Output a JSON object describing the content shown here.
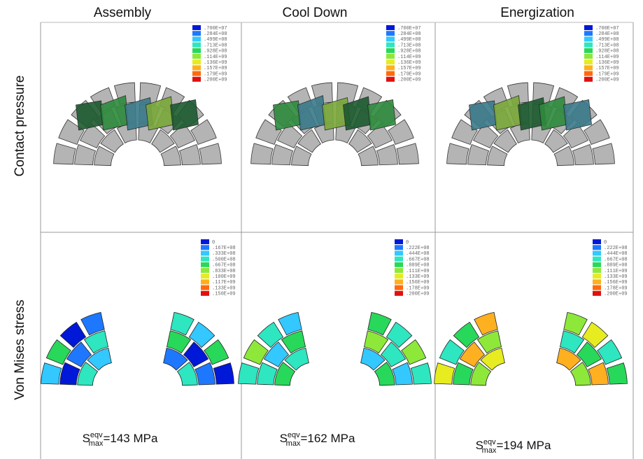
{
  "columns": [
    "Assembly",
    "Cool Down",
    "Energization"
  ],
  "rows": [
    "Contact pressure",
    "Von Mises stress"
  ],
  "panels": [
    [
      {
        "legend": [
          ".700E+07",
          ".284E+08",
          ".499E+08",
          ".713E+08",
          ".928E+08",
          ".114E+09",
          ".136E+09",
          ".157E+09",
          ".179E+09",
          ".200E+09"
        ]
      },
      {
        "legend": [
          ".700E+07",
          ".284E+08",
          ".499E+08",
          ".713E+08",
          ".928E+08",
          ".114E+09",
          ".136E+09",
          ".157E+09",
          ".179E+09",
          ".200E+09"
        ]
      },
      {
        "legend": [
          ".700E+07",
          ".284E+08",
          ".499E+08",
          ".713E+08",
          ".928E+08",
          ".114E+09",
          ".136E+09",
          ".157E+09",
          ".179E+09",
          ".200E+09"
        ]
      }
    ],
    [
      {
        "legend": [
          "0",
          ".167E+08",
          ".333E+08",
          ".500E+08",
          ".667E+08",
          ".833E+08",
          ".100E+09",
          ".117E+09",
          ".133E+09",
          ".150E+09"
        ],
        "result": {
          "symbol": "S",
          "sup": "eqv",
          "sub": "max",
          "text": "=143 MPa"
        }
      },
      {
        "legend": [
          "0",
          ".222E+08",
          ".444E+08",
          ".667E+08",
          ".889E+08",
          ".111E+09",
          ".133E+09",
          ".156E+09",
          ".178E+09",
          ".200E+09"
        ],
        "result": {
          "symbol": "S",
          "sup": "eqv",
          "sub": "max",
          "text": "=162 MPa"
        }
      },
      {
        "legend": [
          "0",
          ".222E+08",
          ".444E+08",
          ".667E+08",
          ".889E+08",
          ".111E+09",
          ".133E+09",
          ".156E+09",
          ".178E+09",
          ".200E+09"
        ],
        "result": {
          "symbol": "S",
          "sup": "eqv",
          "sub": "max",
          "text": "=194 MPa"
        }
      }
    ]
  ]
}
